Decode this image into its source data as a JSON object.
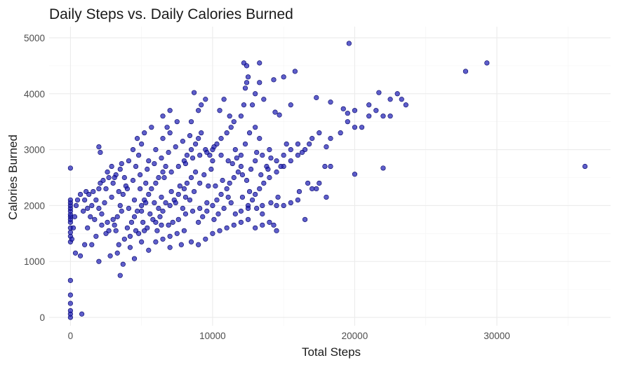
{
  "chart_data": {
    "type": "scatter",
    "title": "Daily Steps vs. Daily Calories Burned",
    "xlabel": "Total Steps",
    "ylabel": "Calories Burned",
    "xlim": [
      -1500,
      38000
    ],
    "ylim": [
      -150,
      5200
    ],
    "x_ticks": [
      0,
      10000,
      20000,
      30000
    ],
    "x_tick_labels": [
      "0",
      "10000",
      "20000",
      "30000"
    ],
    "y_ticks": [
      0,
      1000,
      2000,
      3000,
      4000,
      5000
    ],
    "y_tick_labels": [
      "0",
      "1000",
      "2000",
      "3000",
      "4000",
      "5000"
    ],
    "grid": true,
    "legend": "none",
    "point_color": "#1a1ab3",
    "point_outline": "#000066",
    "points": [
      [
        0,
        0
      ],
      [
        0,
        60
      ],
      [
        0,
        120
      ],
      [
        0,
        250
      ],
      [
        0,
        400
      ],
      [
        0,
        660
      ],
      [
        800,
        60
      ],
      [
        0,
        1350
      ],
      [
        0,
        1450
      ],
      [
        0,
        1520
      ],
      [
        0,
        1600
      ],
      [
        0,
        1700
      ],
      [
        0,
        1750
      ],
      [
        0,
        1800
      ],
      [
        0,
        1840
      ],
      [
        0,
        1900
      ],
      [
        0,
        1950
      ],
      [
        0,
        2000
      ],
      [
        0,
        2050
      ],
      [
        0,
        2100
      ],
      [
        0,
        2670
      ],
      [
        100,
        1400
      ],
      [
        200,
        1600
      ],
      [
        300,
        1800
      ],
      [
        400,
        2000
      ],
      [
        500,
        2100
      ],
      [
        700,
        2200
      ],
      [
        900,
        1900
      ],
      [
        1100,
        2250
      ],
      [
        350,
        1150
      ],
      [
        700,
        1100
      ],
      [
        1000,
        1300
      ],
      [
        1200,
        1600
      ],
      [
        1400,
        1800
      ],
      [
        1500,
        2000
      ],
      [
        1800,
        2100
      ],
      [
        2000,
        2300
      ],
      [
        2100,
        2400
      ],
      [
        1500,
        1300
      ],
      [
        1800,
        1450
      ],
      [
        2000,
        1950
      ],
      [
        2200,
        1850
      ],
      [
        2500,
        2300
      ],
      [
        2700,
        2500
      ],
      [
        2000,
        3050
      ],
      [
        2100,
        2950
      ],
      [
        2500,
        1500
      ],
      [
        2600,
        1700
      ],
      [
        3000,
        1750
      ],
      [
        3200,
        1550
      ],
      [
        3300,
        1800
      ],
      [
        3500,
        2000
      ],
      [
        3700,
        2200
      ],
      [
        3000,
        2400
      ],
      [
        3200,
        2550
      ],
      [
        3500,
        2650
      ],
      [
        3800,
        2500
      ],
      [
        4000,
        2300
      ],
      [
        2000,
        1000
      ],
      [
        2800,
        1100
      ],
      [
        3300,
        1150
      ],
      [
        3500,
        750
      ],
      [
        3700,
        950
      ],
      [
        4200,
        1250
      ],
      [
        4500,
        1050
      ],
      [
        5000,
        1350
      ],
      [
        5500,
        1200
      ],
      [
        4800,
        1500
      ],
      [
        5200,
        1550
      ],
      [
        4000,
        1600
      ],
      [
        4300,
        1700
      ],
      [
        4500,
        1800
      ],
      [
        4700,
        1900
      ],
      [
        5000,
        2000
      ],
      [
        5200,
        2100
      ],
      [
        5500,
        2200
      ],
      [
        5700,
        2300
      ],
      [
        6000,
        2400
      ],
      [
        6200,
        2500
      ],
      [
        6500,
        2600
      ],
      [
        6700,
        2700
      ],
      [
        4600,
        2700
      ],
      [
        4800,
        2900
      ],
      [
        5000,
        3100
      ],
      [
        5500,
        2800
      ],
      [
        6000,
        3000
      ],
      [
        6500,
        3200
      ],
      [
        7000,
        3300
      ],
      [
        7500,
        3500
      ],
      [
        6500,
        3600
      ],
      [
        6800,
        3400
      ],
      [
        7000,
        3700
      ],
      [
        6000,
        1700
      ],
      [
        6300,
        1800
      ],
      [
        6500,
        1900
      ],
      [
        7000,
        2000
      ],
      [
        7300,
        2100
      ],
      [
        7600,
        2200
      ],
      [
        8000,
        2300
      ],
      [
        8200,
        2400
      ],
      [
        8500,
        2500
      ],
      [
        8800,
        2600
      ],
      [
        6000,
        1350
      ],
      [
        6500,
        1400
      ],
      [
        7000,
        1450
      ],
      [
        7500,
        1500
      ],
      [
        8000,
        1550
      ],
      [
        8500,
        1350
      ],
      [
        9000,
        1300
      ],
      [
        9500,
        1400
      ],
      [
        7800,
        1300
      ],
      [
        7000,
        1250
      ],
      [
        8000,
        2800
      ],
      [
        8200,
        2900
      ],
      [
        8500,
        3000
      ],
      [
        8800,
        3100
      ],
      [
        9000,
        3200
      ],
      [
        9200,
        3300
      ],
      [
        9500,
        3000
      ],
      [
        9800,
        2900
      ],
      [
        10000,
        2800
      ],
      [
        8500,
        3500
      ],
      [
        9000,
        3700
      ],
      [
        9200,
        3800
      ],
      [
        8700,
        4020
      ],
      [
        9500,
        3900
      ],
      [
        9000,
        1700
      ],
      [
        9300,
        1800
      ],
      [
        9600,
        1900
      ],
      [
        10000,
        2000
      ],
      [
        10300,
        2100
      ],
      [
        10600,
        2200
      ],
      [
        11000,
        2300
      ],
      [
        11200,
        2400
      ],
      [
        11500,
        2500
      ],
      [
        11800,
        2600
      ],
      [
        12000,
        2700
      ],
      [
        10000,
        1500
      ],
      [
        10500,
        1550
      ],
      [
        11000,
        1600
      ],
      [
        11500,
        1650
      ],
      [
        12000,
        1700
      ],
      [
        12500,
        1750
      ],
      [
        13000,
        1600
      ],
      [
        13500,
        1650
      ],
      [
        14000,
        1700
      ],
      [
        14300,
        1650
      ],
      [
        14500,
        1550
      ],
      [
        10000,
        3000
      ],
      [
        10300,
        3100
      ],
      [
        10600,
        3200
      ],
      [
        11000,
        3300
      ],
      [
        11300,
        3400
      ],
      [
        11600,
        3000
      ],
      [
        12000,
        2900
      ],
      [
        12300,
        3100
      ],
      [
        12600,
        3300
      ],
      [
        13000,
        3400
      ],
      [
        13300,
        3200
      ],
      [
        10500,
        3700
      ],
      [
        10800,
        3900
      ],
      [
        11200,
        3600
      ],
      [
        11500,
        3500
      ],
      [
        12000,
        3600
      ],
      [
        12200,
        3800
      ],
      [
        12300,
        4100
      ],
      [
        12400,
        4200
      ],
      [
        12500,
        4300
      ],
      [
        12200,
        4550
      ],
      [
        12400,
        4500
      ],
      [
        13300,
        4550
      ],
      [
        13000,
        4000
      ],
      [
        13300,
        4200
      ],
      [
        14300,
        4250
      ],
      [
        15000,
        4300
      ],
      [
        15800,
        4400
      ],
      [
        12800,
        3800
      ],
      [
        13600,
        3900
      ],
      [
        14400,
        3670
      ],
      [
        14700,
        3620
      ],
      [
        15500,
        3800
      ],
      [
        12500,
        2000
      ],
      [
        12800,
        2100
      ],
      [
        13000,
        2200
      ],
      [
        13300,
        2300
      ],
      [
        13600,
        2400
      ],
      [
        14000,
        2500
      ],
      [
        14500,
        2600
      ],
      [
        15000,
        2700
      ],
      [
        15500,
        2800
      ],
      [
        16000,
        2900
      ],
      [
        16500,
        3000
      ],
      [
        13000,
        2800
      ],
      [
        13500,
        2900
      ],
      [
        14000,
        3000
      ],
      [
        14500,
        2800
      ],
      [
        15000,
        2900
      ],
      [
        15500,
        3000
      ],
      [
        16000,
        3100
      ],
      [
        17000,
        3200
      ],
      [
        17500,
        3300
      ],
      [
        18000,
        3050
      ],
      [
        18300,
        3200
      ],
      [
        12000,
        1900
      ],
      [
        12500,
        1950
      ],
      [
        13500,
        2000
      ],
      [
        14500,
        2000
      ],
      [
        15000,
        2000
      ],
      [
        15500,
        2050
      ],
      [
        16000,
        2100
      ],
      [
        16500,
        1750
      ],
      [
        17000,
        2300
      ],
      [
        17500,
        2400
      ],
      [
        18000,
        2150
      ],
      [
        18300,
        2700
      ],
      [
        19000,
        3300
      ],
      [
        19500,
        3500
      ],
      [
        20000,
        3400
      ],
      [
        20500,
        3400
      ],
      [
        20000,
        2560
      ],
      [
        21000,
        3600
      ],
      [
        21500,
        3700
      ],
      [
        22000,
        3600
      ],
      [
        22500,
        3900
      ],
      [
        22000,
        2670
      ],
      [
        17300,
        3930
      ],
      [
        18300,
        3850
      ],
      [
        19200,
        3730
      ],
      [
        19500,
        3650
      ],
      [
        20000,
        3700
      ],
      [
        21000,
        3800
      ],
      [
        21700,
        4020
      ],
      [
        22500,
        3600
      ],
      [
        23000,
        4000
      ],
      [
        23300,
        3900
      ],
      [
        23600,
        3800
      ],
      [
        19600,
        4900
      ],
      [
        27800,
        4400
      ],
      [
        29300,
        4550
      ],
      [
        36200,
        2700
      ],
      [
        5000,
        1900
      ],
      [
        5300,
        2050
      ],
      [
        5600,
        1850
      ],
      [
        5900,
        2050
      ],
      [
        6200,
        1950
      ],
      [
        6400,
        2150
      ],
      [
        6700,
        2050
      ],
      [
        7100,
        2250
      ],
      [
        7400,
        2050
      ],
      [
        7700,
        2350
      ],
      [
        7900,
        1950
      ],
      [
        8100,
        2150
      ],
      [
        8400,
        2100
      ],
      [
        8700,
        2250
      ],
      [
        9100,
        2400
      ],
      [
        9400,
        2550
      ],
      [
        9700,
        2350
      ],
      [
        9900,
        2650
      ],
      [
        3400,
        1300
      ],
      [
        3800,
        1400
      ],
      [
        4200,
        1450
      ],
      [
        4600,
        1550
      ],
      [
        5100,
        1700
      ],
      [
        5400,
        1600
      ],
      [
        5800,
        1750
      ],
      [
        6100,
        1550
      ],
      [
        6400,
        1650
      ],
      [
        6900,
        1650
      ],
      [
        7200,
        1700
      ],
      [
        7600,
        1750
      ],
      [
        8100,
        1850
      ],
      [
        8600,
        1900
      ],
      [
        9100,
        1950
      ],
      [
        9600,
        2050
      ],
      [
        2400,
        2050
      ],
      [
        2900,
        2150
      ],
      [
        3400,
        2250
      ],
      [
        3900,
        2350
      ],
      [
        4400,
        2450
      ],
      [
        4900,
        2550
      ],
      [
        5400,
        2650
      ],
      [
        5900,
        2750
      ],
      [
        6400,
        2850
      ],
      [
        6900,
        2950
      ],
      [
        7400,
        3050
      ],
      [
        7900,
        3150
      ],
      [
        8400,
        3250
      ],
      [
        10200,
        2350
      ],
      [
        10700,
        2450
      ],
      [
        11100,
        2150
      ],
      [
        11400,
        2750
      ],
      [
        11700,
        2850
      ],
      [
        12100,
        2550
      ],
      [
        12400,
        2450
      ],
      [
        12700,
        2650
      ],
      [
        13100,
        2950
      ],
      [
        13400,
        2550
      ],
      [
        13800,
        2700
      ],
      [
        14100,
        2850
      ],
      [
        10100,
        1750
      ],
      [
        10400,
        1850
      ],
      [
        10800,
        1950
      ],
      [
        11300,
        2050
      ],
      [
        11600,
        1850
      ],
      [
        12100,
        2150
      ],
      [
        12600,
        2250
      ],
      [
        13100,
        1950
      ],
      [
        13500,
        1850
      ],
      [
        14100,
        2050
      ],
      [
        14600,
        2150
      ],
      [
        1300,
        2200
      ],
      [
        1600,
        2250
      ],
      [
        2300,
        2450
      ],
      [
        2600,
        2600
      ],
      [
        2900,
        2700
      ],
      [
        3100,
        2500
      ],
      [
        3600,
        2750
      ],
      [
        4100,
        2800
      ],
      [
        4400,
        3000
      ],
      [
        4700,
        3200
      ],
      [
        5200,
        3300
      ],
      [
        5700,
        3400
      ],
      [
        1000,
        2100
      ],
      [
        1200,
        1950
      ],
      [
        1700,
        1750
      ],
      [
        2200,
        1650
      ],
      [
        2700,
        1550
      ],
      [
        3100,
        1650
      ],
      [
        3600,
        1900
      ],
      [
        4100,
        1950
      ],
      [
        4500,
        2100
      ],
      [
        4900,
        2300
      ],
      [
        5300,
        2400
      ],
      [
        6600,
        2500
      ],
      [
        7100,
        2600
      ],
      [
        7600,
        2700
      ],
      [
        8100,
        2750
      ],
      [
        8600,
        2850
      ],
      [
        9100,
        2900
      ],
      [
        9600,
        2950
      ],
      [
        10100,
        3050
      ],
      [
        10600,
        2900
      ],
      [
        11100,
        2800
      ],
      [
        15200,
        3100
      ],
      [
        16300,
        2950
      ],
      [
        16800,
        3100
      ],
      [
        14800,
        2700
      ],
      [
        13900,
        2650
      ],
      [
        17900,
        2700
      ],
      [
        16700,
        2400
      ],
      [
        17300,
        2300
      ],
      [
        16100,
        2250
      ]
    ]
  }
}
